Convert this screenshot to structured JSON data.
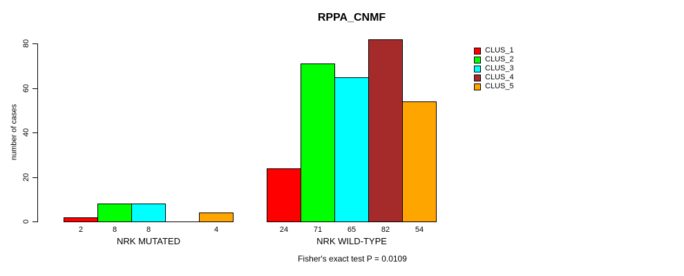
{
  "chart_data": {
    "type": "bar",
    "title": "RPPA_CNMF",
    "ylabel": "number of cases",
    "xlabel": "",
    "ylim": [
      0,
      80
    ],
    "yticks": [
      0,
      20,
      40,
      60,
      80
    ],
    "grid": false,
    "legend_position": "right",
    "categories": [
      "NRK MUTATED",
      "NRK WILD-TYPE"
    ],
    "series": [
      {
        "name": "CLUS_1",
        "color": "#FF0000",
        "values": [
          2,
          24
        ]
      },
      {
        "name": "CLUS_2",
        "color": "#00FF00",
        "values": [
          8,
          71
        ]
      },
      {
        "name": "CLUS_3",
        "color": "#00FFFF",
        "values": [
          8,
          65
        ]
      },
      {
        "name": "CLUS_4",
        "color": "#A52A2A",
        "values": [
          0,
          82
        ]
      },
      {
        "name": "CLUS_5",
        "color": "#FFA500",
        "values": [
          4,
          54
        ]
      }
    ],
    "bar_value_labels": {
      "NRK MUTATED": [
        "2",
        "8",
        "8",
        "",
        "4"
      ],
      "NRK WILD-TYPE": [
        "24",
        "71",
        "65",
        "82",
        "54"
      ]
    },
    "zero_value_bars_hidden": true,
    "annotation": "Fisher's exact test P = 0.0109"
  }
}
